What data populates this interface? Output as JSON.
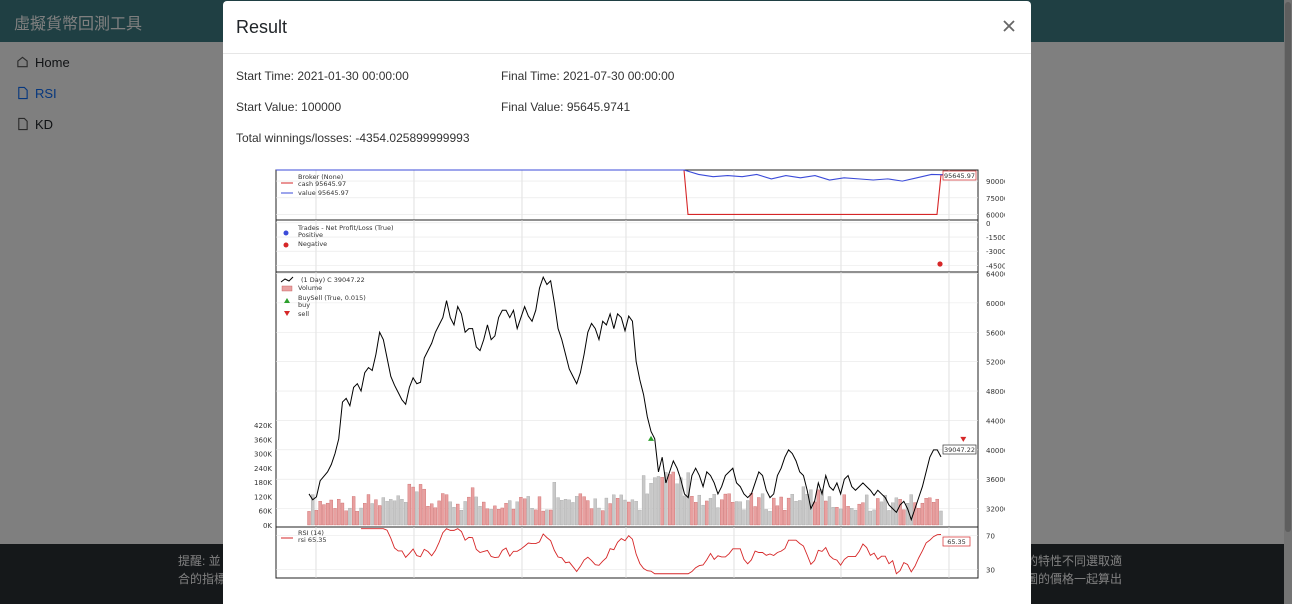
{
  "app": {
    "brand": "虛擬貨幣回測工具",
    "sidebar": [
      {
        "label": "Home",
        "icon": "house-icon"
      },
      {
        "label": "RSI",
        "icon": "file-icon",
        "active": true
      },
      {
        "label": "KD",
        "icon": "file-icon"
      }
    ],
    "footer": {
      "left1": "提醒: 並",
      "left2": "合的指標",
      "right1": "的特性不同選取適",
      "right2": "圖的價格一起算出"
    }
  },
  "modal": {
    "title": "Result",
    "close_label": "×",
    "start_time": "Start Time: 2021-01-30 00:00:00",
    "final_time": "Final Time: 2021-07-30 00:00:00",
    "start_value": "Start Value: 100000",
    "final_value": "Final Value: 95645.9741",
    "total": "Total winnings/losses: -4354.025899999993"
  },
  "colors": {
    "navbar": "#3f7f86",
    "price": "#000000",
    "cash": "#d62728",
    "value": "#3b4bd9",
    "rsi": "#d62728",
    "vol_up": "#e8a0a0",
    "vol_down": "#c8c8c8",
    "buy": "#2ca02c",
    "sell": "#d62728"
  },
  "chart_data": {
    "type": "line",
    "broker": {
      "legend_title": "Broker (None)",
      "cash_label": "cash 95645.97",
      "value_label": "value 95645.97",
      "end_label": "95645.97",
      "yticks": [
        "90000",
        "75000",
        "60000"
      ],
      "ylim": [
        55000,
        100000
      ],
      "cash": [
        100000,
        100000,
        60000,
        60000,
        95646
      ],
      "value_points": [
        100000,
        100000,
        100000,
        96000,
        94000,
        95000,
        94000,
        96000,
        92000,
        95000,
        93000,
        95000,
        91000,
        93000,
        92000,
        91000,
        92000,
        90000,
        93000,
        96000,
        95646
      ]
    },
    "trades": {
      "legend_title": "Trades - Net Profit/Loss (True)",
      "positive_label": "Positive",
      "negative_label": "Negative",
      "yticks": [
        "0",
        "-1500",
        "-3000",
        "-4500"
      ],
      "ylim": [
        -5200,
        300
      ],
      "negative_value": -4354
    },
    "price": {
      "legend_title": "(1 Day) C 39047.22",
      "volume_label": "Volume",
      "buysell_label": "BuySell (True, 0.015)",
      "buy_label": "buy",
      "sell_label": "sell",
      "end_label": "39047.22",
      "yticks": [
        "64000",
        "60000",
        "56000",
        "52000",
        "48000",
        "44000",
        "40000",
        "36000",
        "32000"
      ],
      "ylim": [
        29500,
        64200
      ],
      "volume_ticks": [
        "420K",
        "360K",
        "300K",
        "240K",
        "180K",
        "120K",
        "60K",
        "0K"
      ],
      "volume_max": 440000,
      "close": [
        34000,
        33200,
        33600,
        35800,
        36400,
        37000,
        38000,
        39500,
        41500,
        46500,
        47000,
        46000,
        48500,
        49000,
        48000,
        50500,
        51200,
        50800,
        53000,
        56000,
        55000,
        52500,
        50000,
        48800,
        47800,
        46800,
        46200,
        48500,
        49800,
        49000,
        49200,
        52500,
        53500,
        54500,
        56000,
        57000,
        58000,
        60300,
        58000,
        57000,
        59500,
        58500,
        56000,
        56500,
        56500,
        54000,
        53500,
        55000,
        57000,
        55000,
        55500,
        58000,
        59000,
        59000,
        58000,
        59000,
        56500,
        58000,
        59500,
        58200,
        57500,
        59000,
        62000,
        63500,
        62500,
        63000,
        60000,
        56500,
        55000,
        53000,
        51000,
        50000,
        49000,
        50500,
        53000,
        56000,
        57200,
        56500,
        55000,
        57500,
        57000,
        58500,
        56500,
        58500,
        58000,
        56200,
        58200,
        57500,
        52000,
        49500,
        47500,
        44500,
        42500,
        41500,
        37000,
        39000,
        35500,
        37000,
        38500,
        37500,
        36000,
        34000,
        33500,
        36500,
        37500,
        36500,
        35000,
        37000,
        36500,
        35500,
        34000,
        35000,
        36500,
        37000,
        37500,
        35500,
        35000,
        34000,
        33500,
        34000,
        35500,
        37000,
        36500,
        34500,
        33500,
        34000,
        36500,
        37500,
        39000,
        40000,
        39500,
        38500,
        37000,
        36500,
        34500,
        32000,
        33000,
        35500,
        34000,
        36500,
        35000,
        34500,
        35500,
        34000,
        36000,
        36500,
        35000,
        34500,
        35000,
        35500,
        35000,
        34500,
        33800,
        34500,
        34000,
        33500,
        32500,
        32000,
        31500,
        32500,
        33000,
        32000,
        30500,
        32000,
        33500,
        35000,
        37000,
        39000,
        40000,
        40000,
        39047
      ],
      "buy": {
        "index": 92,
        "price": 41500
      },
      "sell": {
        "index": 176,
        "price": 40000
      }
    },
    "rsi": {
      "legend_title": "RSI (14)",
      "series_label": "rsi 65.35",
      "end_label": "65.35",
      "yticks": [
        "70",
        "30"
      ],
      "ylim": [
        20,
        80
      ]
    }
  }
}
